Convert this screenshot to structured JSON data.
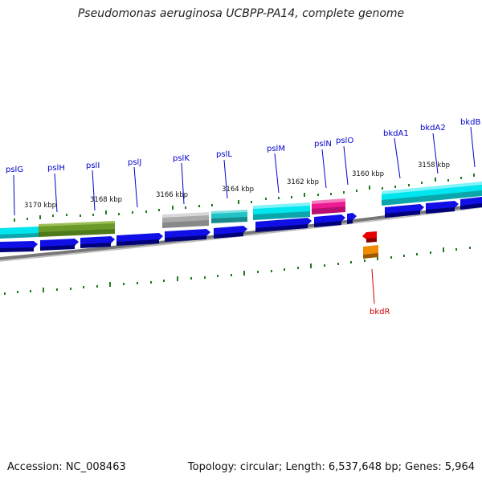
{
  "title": "Pseudomonas aeruginosa UCBPP-PA14, complete genome",
  "footer": {
    "accession": "Accession: NC_008463",
    "summary": "Topology: circular; Length: 6,537,648 bp; Genes: 5,964"
  },
  "colors": {
    "gene_forward": "#1010e6",
    "gene_reverse_red": "#e60000",
    "gene_reverse_orange": "#f08c00",
    "feature_cyan": "#00e5ee",
    "feature_teal": "#22c3c6",
    "feature_olive": "#6b9a2a",
    "feature_gray": "#aaaaaa",
    "feature_magenta": "#ee1a94",
    "backbone": "#777777",
    "ticks": "#1e7a1e",
    "label_forward": "#0000cc",
    "label_reverse": "#cc0000"
  },
  "scale_labels": [
    "3170 kbp",
    "3168 kbp",
    "3166 kbp",
    "3164 kbp",
    "3162 kbp",
    "3160 kbp",
    "3158 kbp"
  ],
  "gene_labels": [
    "pslG",
    "pslH",
    "pslI",
    "pslJ",
    "pslK",
    "pslL",
    "pslM",
    "pslN",
    "pslO",
    "bkdA1",
    "bkdA2",
    "bkdB",
    "bkdR"
  ]
}
